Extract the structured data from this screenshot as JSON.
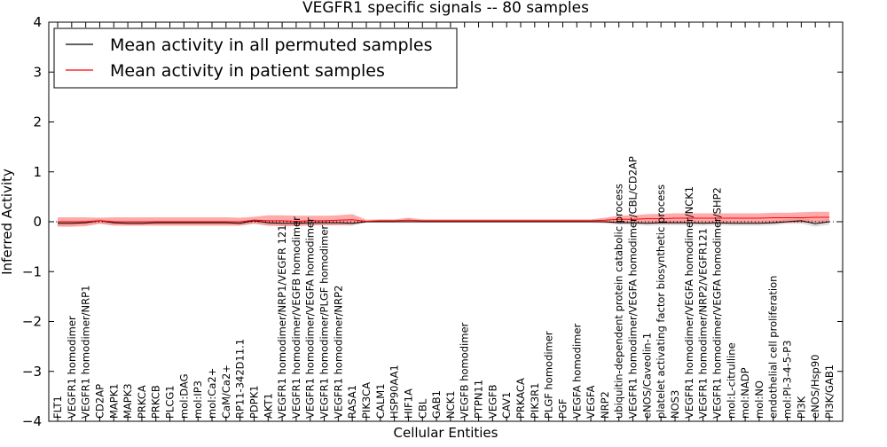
{
  "chart_data": {
    "type": "line",
    "title": "VEGFR1 specific signals -- 80 samples",
    "xlabel": "Cellular Entities",
    "ylabel": "Inferred Activity",
    "ylim": [
      -4,
      4
    ],
    "yticks": [
      -4,
      -3,
      -2,
      -1,
      0,
      1,
      2,
      3,
      4
    ],
    "ytick_labels": [
      "−4",
      "−3",
      "−2",
      "−1",
      "0",
      "1",
      "2",
      "3",
      "4"
    ],
    "grid": false,
    "legend_position": "top-left",
    "reference_line": 0,
    "categories": [
      "FLT1",
      "VEGFR1 homodimer",
      "VEGFR1 homodimer/NRP1",
      "CD2AP",
      "MAPK1",
      "MAPK3",
      "PRKCA",
      "PRKCB",
      "PLCG1",
      "mol:DAG",
      "mol:IP3",
      "mol:Ca2+",
      "CaM/Ca2+",
      "RP11-342D11.1",
      "PDPK1",
      "AKT1",
      "VEGFR1 homodimer/NRP1/VEGFR 121",
      "VEGFR1 homodimer/VEGFB homodimer",
      "VEGFR1 homodimer/VEGFA homodimer",
      "VEGFR1 homodimer/PLGF homodimer",
      "VEGFR1 homodimer/NRP2",
      "RASA1",
      "PIK3CA",
      "CALM1",
      "HSP90AA1",
      "HIF1A",
      "CBL",
      "GAB1",
      "NCK1",
      "VEGFB homodimer",
      "PTPN11",
      "VEGFB",
      "CAV1",
      "PRKACA",
      "PIK3R1",
      "PLGF homodimer",
      "PGF",
      "VEGFA homodimer",
      "VEGFA",
      "NRP2",
      "ubiquitin-dependent protein catabolic process",
      "VEGFR1 homodimer/VEGFA homodimer/CBL/CD2AP",
      "eNOS/Caveolin-1",
      "platelet activating factor biosynthetic process",
      "NOS3",
      "VEGFR1 homodimer/VEGFA homodimer/NCK1",
      "VEGFR1 homodimer/NRP2/VEGFR121",
      "VEGFR1 homodimer/VEGFA homodimer/SHP2",
      "mol:L-citrulline",
      "mol:NADP",
      "mol:NO",
      "endothelial cell proliferation",
      "mol:PI-3-4-5-P3",
      "PI3K",
      "eNOS/Hsp90",
      "PI3K/GAB1"
    ],
    "series": [
      {
        "name": "Mean activity in all permuted samples",
        "color": "#000000",
        "band_color": "#c8c8c8",
        "values": [
          -0.03,
          -0.03,
          -0.02,
          0.02,
          -0.02,
          -0.03,
          -0.03,
          -0.02,
          -0.02,
          -0.02,
          -0.02,
          -0.02,
          -0.02,
          -0.03,
          0.02,
          -0.02,
          -0.03,
          -0.03,
          -0.02,
          -0.02,
          -0.02,
          -0.03,
          0.0,
          0.0,
          0.0,
          0.0,
          0.0,
          0.0,
          0.0,
          0.0,
          0.0,
          0.0,
          0.0,
          0.0,
          0.0,
          0.0,
          0.0,
          0.0,
          0.0,
          0.0,
          -0.02,
          -0.02,
          -0.03,
          -0.02,
          -0.02,
          -0.02,
          -0.03,
          -0.02,
          -0.03,
          -0.03,
          -0.03,
          -0.02,
          0.0,
          0.02,
          -0.04,
          0.0
        ],
        "band_lower": [
          -0.08,
          -0.08,
          -0.06,
          -0.04,
          -0.06,
          -0.07,
          -0.07,
          -0.06,
          -0.06,
          -0.06,
          -0.06,
          -0.06,
          -0.06,
          -0.07,
          -0.04,
          -0.07,
          -0.08,
          -0.08,
          -0.07,
          -0.07,
          -0.07,
          -0.08,
          -0.02,
          -0.02,
          -0.02,
          -0.02,
          -0.02,
          -0.02,
          -0.02,
          -0.02,
          -0.02,
          -0.02,
          -0.02,
          -0.02,
          -0.02,
          -0.02,
          -0.02,
          -0.02,
          -0.02,
          -0.03,
          -0.06,
          -0.06,
          -0.08,
          -0.07,
          -0.07,
          -0.07,
          -0.08,
          -0.07,
          -0.08,
          -0.08,
          -0.08,
          -0.07,
          -0.04,
          -0.04,
          -0.1,
          -0.06
        ],
        "band_upper": [
          0.02,
          0.02,
          0.03,
          0.06,
          0.02,
          0.01,
          0.01,
          0.02,
          0.02,
          0.02,
          0.02,
          0.02,
          0.02,
          0.01,
          0.06,
          0.03,
          0.02,
          0.02,
          0.03,
          0.03,
          0.03,
          0.02,
          0.02,
          0.02,
          0.02,
          0.02,
          0.02,
          0.02,
          0.02,
          0.02,
          0.02,
          0.02,
          0.02,
          0.02,
          0.02,
          0.02,
          0.02,
          0.02,
          0.02,
          0.03,
          0.02,
          0.02,
          0.02,
          0.03,
          0.03,
          0.03,
          0.02,
          0.03,
          0.02,
          0.02,
          0.02,
          0.03,
          0.05,
          0.07,
          0.02,
          0.06
        ]
      },
      {
        "name": "Mean activity in patient samples",
        "color": "#ff0000",
        "band_color": "#ff6666",
        "values": [
          0.0,
          0.0,
          0.0,
          0.02,
          0.0,
          0.0,
          0.0,
          0.0,
          0.0,
          0.0,
          0.0,
          0.0,
          0.0,
          0.0,
          0.03,
          0.02,
          0.02,
          0.01,
          0.02,
          0.02,
          0.03,
          0.04,
          0.01,
          0.02,
          0.02,
          0.03,
          0.02,
          0.02,
          0.02,
          0.02,
          0.02,
          0.02,
          0.02,
          0.02,
          0.02,
          0.02,
          0.02,
          0.02,
          0.02,
          0.03,
          0.05,
          0.05,
          0.06,
          0.06,
          0.07,
          0.07,
          0.07,
          0.07,
          0.07,
          0.07,
          0.07,
          0.08,
          0.08,
          0.08,
          0.09,
          0.09
        ],
        "band_lower": [
          -0.1,
          -0.1,
          -0.09,
          -0.04,
          -0.08,
          -0.08,
          -0.08,
          -0.08,
          -0.08,
          -0.08,
          -0.08,
          -0.08,
          -0.08,
          -0.08,
          -0.04,
          -0.08,
          -0.09,
          -0.09,
          -0.07,
          -0.07,
          -0.07,
          -0.06,
          -0.01,
          -0.01,
          -0.01,
          -0.01,
          -0.01,
          -0.01,
          -0.01,
          -0.01,
          -0.01,
          -0.01,
          -0.01,
          -0.01,
          -0.01,
          -0.01,
          -0.01,
          -0.01,
          -0.01,
          -0.02,
          -0.03,
          -0.03,
          -0.04,
          -0.04,
          -0.04,
          -0.04,
          -0.04,
          -0.04,
          -0.04,
          -0.04,
          -0.04,
          -0.04,
          -0.02,
          -0.02,
          -0.02,
          -0.02
        ],
        "band_upper": [
          0.09,
          0.09,
          0.09,
          0.08,
          0.09,
          0.09,
          0.09,
          0.09,
          0.09,
          0.09,
          0.09,
          0.09,
          0.09,
          0.08,
          0.1,
          0.13,
          0.13,
          0.12,
          0.12,
          0.12,
          0.13,
          0.15,
          0.04,
          0.05,
          0.05,
          0.08,
          0.05,
          0.05,
          0.05,
          0.05,
          0.05,
          0.05,
          0.05,
          0.05,
          0.05,
          0.05,
          0.05,
          0.05,
          0.05,
          0.08,
          0.12,
          0.13,
          0.15,
          0.16,
          0.17,
          0.17,
          0.17,
          0.17,
          0.17,
          0.17,
          0.17,
          0.18,
          0.18,
          0.19,
          0.2,
          0.2
        ]
      }
    ]
  }
}
